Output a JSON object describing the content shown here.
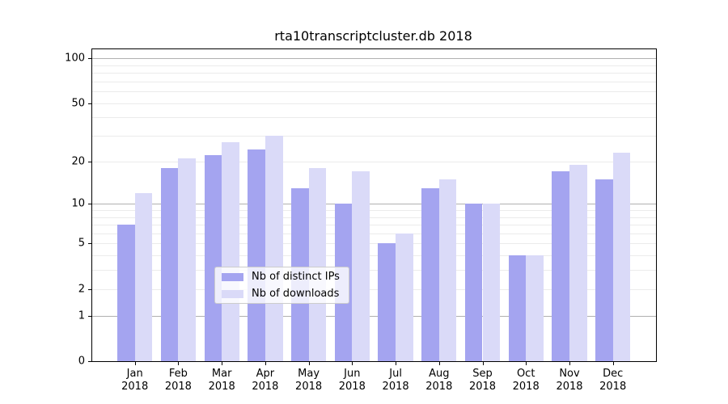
{
  "title": "rta10transcriptcluster.db 2018",
  "legend": {
    "items": [
      {
        "label": "Nb of distinct IPs",
        "color": "#a4a4f0"
      },
      {
        "label": "Nb of downloads",
        "color": "#dadaf8"
      }
    ]
  },
  "axes": {
    "y_tick_labels": [
      "0",
      "1",
      "2",
      "5",
      "10",
      "20",
      "50",
      "100"
    ],
    "x_year_line": "2018"
  },
  "chart_data": {
    "type": "bar",
    "title": "rta10transcriptcluster.db 2018",
    "categories": [
      "Jan 2018",
      "Feb 2018",
      "Mar 2018",
      "Apr 2018",
      "May 2018",
      "Jun 2018",
      "Jul 2018",
      "Aug 2018",
      "Sep 2018",
      "Oct 2018",
      "Nov 2018",
      "Dec 2018"
    ],
    "series": [
      {
        "name": "Nb of distinct IPs",
        "color": "#a4a4f0",
        "values": [
          7,
          18,
          22,
          24,
          13,
          10,
          5,
          13,
          10,
          4,
          17,
          15
        ]
      },
      {
        "name": "Nb of downloads",
        "color": "#dadaf8",
        "values": [
          12,
          21,
          27,
          30,
          18,
          17,
          6,
          15,
          10,
          4,
          19,
          23
        ]
      }
    ],
    "xlabel": "",
    "ylabel": "",
    "yscale": "log1p",
    "ylim": [
      0,
      115
    ],
    "y_ticks": [
      0,
      1,
      2,
      5,
      10,
      20,
      50,
      100
    ],
    "grid_major": [
      1,
      10,
      100
    ],
    "grid_minor": [
      2,
      3,
      4,
      5,
      6,
      7,
      8,
      9,
      20,
      30,
      40,
      50,
      60,
      70,
      80,
      90
    ],
    "grid": "horizontal",
    "legend_position": "lower center"
  }
}
